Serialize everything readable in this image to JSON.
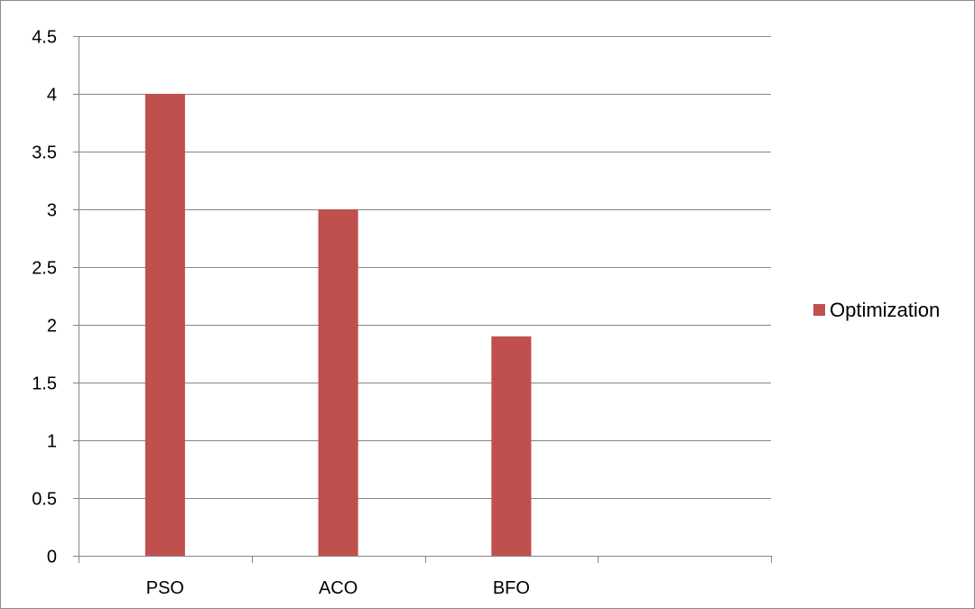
{
  "chart_data": {
    "type": "bar",
    "categories": [
      "PSO",
      "ACO",
      "BFO",
      ""
    ],
    "series": [
      {
        "name": "Optimization",
        "values": [
          4,
          3,
          1.9,
          null
        ],
        "color": "#c0504d"
      }
    ],
    "ylim": [
      0,
      4.5
    ],
    "yticks": [
      "0",
      "0.5",
      "1",
      "1.5",
      "2",
      "2.5",
      "3",
      "3.5",
      "4",
      "4.5"
    ],
    "grid": true,
    "legend_position": "right",
    "gridline_color": "#868686"
  }
}
